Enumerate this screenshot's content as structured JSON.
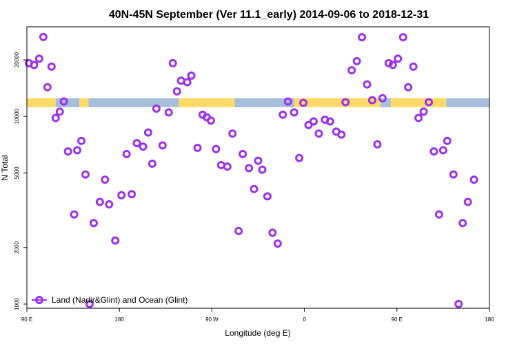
{
  "chart_data": {
    "type": "scatter",
    "title": "40N-45N September (Ver 11.1_early)   2014-09-06 to 2018-12-31",
    "xlabel": "Longitude (deg E)",
    "ylabel": "N Total",
    "x_axis": {
      "range_deg_east": [
        90,
        540
      ],
      "ticks": [
        {
          "value": 90,
          "label": "90 E"
        },
        {
          "value": 180,
          "label": "180"
        },
        {
          "value": 270,
          "label": "90 W"
        },
        {
          "value": 360,
          "label": "0"
        },
        {
          "value": 450,
          "label": "90 E"
        },
        {
          "value": 540,
          "label": "180"
        }
      ]
    },
    "y_axis": {
      "scale": "log",
      "range": [
        950,
        30000
      ],
      "ticks": [
        1000,
        2000,
        5000,
        10000,
        20000
      ]
    },
    "band": {
      "description_colors": {
        "land": "#ffd966",
        "ocean": "#a4bedb"
      },
      "y_range": [
        11200,
        12500
      ],
      "segments": [
        {
          "x0": 90,
          "x1": 118,
          "type": "land"
        },
        {
          "x0": 118,
          "x1": 141,
          "type": "ocean"
        },
        {
          "x0": 141,
          "x1": 150,
          "type": "land"
        },
        {
          "x0": 150,
          "x1": 238,
          "type": "ocean"
        },
        {
          "x0": 238,
          "x1": 292,
          "type": "land"
        },
        {
          "x0": 292,
          "x1": 350,
          "type": "ocean"
        },
        {
          "x0": 350,
          "x1": 434,
          "type": "land"
        },
        {
          "x0": 434,
          "x1": 444,
          "type": "ocean"
        },
        {
          "x0": 444,
          "x1": 498,
          "type": "land"
        },
        {
          "x0": 498,
          "x1": 540,
          "type": "ocean"
        }
      ]
    },
    "legend": {
      "position": "bottom-left",
      "label": "Land (Nadir&Glint) and Ocean (Glint)",
      "color": "#9b30ef"
    },
    "series": [
      {
        "name": "Land (Nadir&Glint) and Ocean (Glint)",
        "color": "#9b30ef",
        "points": [
          [
            92,
            19200
          ],
          [
            97,
            18800
          ],
          [
            102,
            20300
          ],
          [
            106,
            26500
          ],
          [
            110,
            14300
          ],
          [
            114,
            18400
          ],
          [
            118,
            9800
          ],
          [
            122,
            10600
          ],
          [
            126,
            12000
          ],
          [
            130,
            6500
          ],
          [
            136,
            3000
          ],
          [
            139,
            6600
          ],
          [
            143,
            7400
          ],
          [
            147,
            4900
          ],
          [
            151,
            1000
          ],
          [
            155,
            2700
          ],
          [
            161,
            3500
          ],
          [
            166,
            4600
          ],
          [
            170,
            3400
          ],
          [
            176,
            2180
          ],
          [
            182,
            3800
          ],
          [
            187,
            6300
          ],
          [
            192,
            3850
          ],
          [
            197,
            7200
          ],
          [
            203,
            6900
          ],
          [
            208,
            8200
          ],
          [
            212,
            5600
          ],
          [
            216,
            11000
          ],
          [
            222,
            7000
          ],
          [
            228,
            10500
          ],
          [
            232,
            19200
          ],
          [
            236,
            13600
          ],
          [
            240,
            15500
          ],
          [
            246,
            15200
          ],
          [
            250,
            16500
          ],
          [
            256,
            6800
          ],
          [
            261,
            10200
          ],
          [
            265,
            9900
          ],
          [
            269,
            9500
          ],
          [
            274,
            6700
          ],
          [
            279,
            5500
          ],
          [
            285,
            5400
          ],
          [
            290,
            8100
          ],
          [
            296,
            2450
          ],
          [
            300,
            6300
          ],
          [
            306,
            5300
          ],
          [
            311,
            4100
          ],
          [
            315,
            5800
          ],
          [
            319,
            5200
          ],
          [
            324,
            3750
          ],
          [
            329,
            2400
          ],
          [
            334,
            2100
          ],
          [
            339,
            10200
          ],
          [
            344,
            12000
          ],
          [
            350,
            10500
          ],
          [
            355,
            6000
          ],
          [
            359,
            11800
          ],
          [
            364,
            9000
          ],
          [
            369,
            9400
          ],
          [
            374,
            8100
          ],
          [
            380,
            9600
          ],
          [
            385,
            9400
          ],
          [
            391,
            8300
          ],
          [
            396,
            8000
          ],
          [
            400,
            11900
          ],
          [
            406,
            17600
          ],
          [
            411,
            19700
          ],
          [
            416,
            26400
          ],
          [
            421,
            14800
          ],
          [
            426,
            12200
          ],
          [
            431,
            7100
          ],
          [
            436,
            12500
          ],
          [
            442,
            19200
          ],
          [
            446,
            18800
          ],
          [
            451,
            20300
          ],
          [
            456,
            26400
          ],
          [
            461,
            14300
          ],
          [
            466,
            18400
          ],
          [
            471,
            9800
          ],
          [
            476,
            10600
          ],
          [
            481,
            11900
          ],
          [
            486,
            6500
          ],
          [
            491,
            3000
          ],
          [
            495,
            6600
          ],
          [
            499,
            7400
          ],
          [
            505,
            4900
          ],
          [
            510,
            1000
          ],
          [
            514,
            2700
          ],
          [
            519,
            3500
          ],
          [
            525,
            4600
          ]
        ]
      }
    ]
  }
}
